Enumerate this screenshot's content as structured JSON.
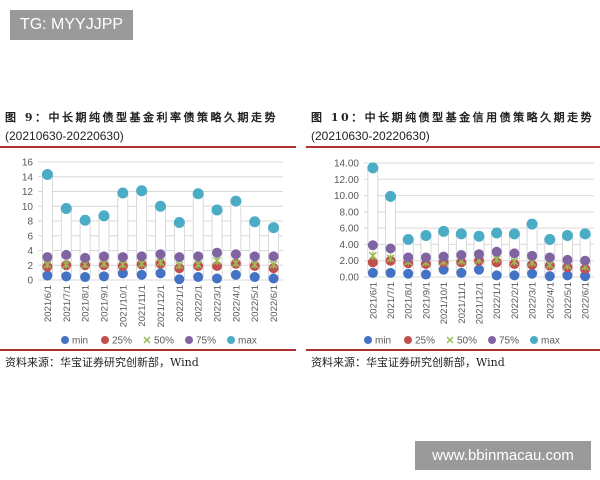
{
  "watermarks": {
    "top": "TG: MYYJJPP",
    "bottom": "www.bbinmacau.com"
  },
  "colors": {
    "min": "#4472c4",
    "p25": "#c0504d",
    "p50": "#9bbb59",
    "p75": "#8064a2",
    "max": "#4bacc6",
    "rule": "#b03030"
  },
  "chart_data": [
    {
      "type": "scatter",
      "title": "图 9：中长期纯债型基金利率债策略久期走势",
      "subtitle": "(20210630-20220630)",
      "source": "资料来源：华宝证券研究创新部，Wind",
      "ylim": [
        0,
        16
      ],
      "yticks": [
        "0",
        "2",
        "4",
        "6",
        "8",
        "10",
        "12",
        "14",
        "16"
      ],
      "categories": [
        "2021/6/1",
        "2021/7/1",
        "2021/8/1",
        "2021/9/1",
        "2021/10/1",
        "2021/11/1",
        "2021/12/1",
        "2022/1/1",
        "2022/2/1",
        "2022/3/1",
        "2022/4/1",
        "2022/5/1",
        "2022/6/1"
      ],
      "legend": [
        "min",
        "25%",
        "50%",
        "75%",
        "max"
      ],
      "legend_position": "bottom",
      "grid": true,
      "series": [
        {
          "name": "min",
          "values": [
            0.6,
            0.5,
            0.4,
            0.5,
            0.9,
            0.7,
            0.9,
            0.1,
            0.4,
            0.2,
            0.7,
            0.4,
            0.2
          ]
        },
        {
          "name": "25%",
          "values": [
            1.8,
            2.0,
            2.0,
            2.0,
            1.9,
            2.1,
            2.2,
            1.6,
            1.9,
            1.9,
            2.2,
            1.9,
            1.6
          ]
        },
        {
          "name": "50%",
          "values": [
            2.1,
            2.1,
            2.1,
            2.2,
            2.1,
            2.2,
            2.4,
            2.0,
            2.1,
            2.6,
            2.3,
            2.1,
            2.1
          ]
        },
        {
          "name": "75%",
          "values": [
            3.1,
            3.4,
            3.0,
            3.2,
            3.1,
            3.2,
            3.5,
            3.1,
            3.2,
            3.7,
            3.5,
            3.2,
            3.2
          ]
        },
        {
          "name": "max",
          "values": [
            14.3,
            9.7,
            8.1,
            8.7,
            11.8,
            12.1,
            10.0,
            7.8,
            11.7,
            9.5,
            10.7,
            7.9,
            7.1
          ]
        }
      ]
    },
    {
      "type": "scatter",
      "title": "图 10：中长期纯债型基金信用债策略久期走势",
      "subtitle": "(20210630-20220630)",
      "source": "资料来源：华宝证券研究创新部，Wind",
      "ylim": [
        0,
        14
      ],
      "yticks": [
        "0.00",
        "2.00",
        "4.00",
        "6.00",
        "8.00",
        "10.00",
        "12.00",
        "14.00"
      ],
      "categories": [
        "2021/6/1",
        "2021/7/1",
        "2021/8/1",
        "2021/9/1",
        "2021/10/1",
        "2021/11/1",
        "2021/12/1",
        "2022/1/1",
        "2022/2/1",
        "2022/3/1",
        "2022/4/1",
        "2022/5/1",
        "2022/6/1"
      ],
      "legend": [
        "min",
        "25%",
        "50%",
        "75%",
        "max"
      ],
      "legend_position": "bottom",
      "grid": true,
      "series": [
        {
          "name": "min",
          "values": [
            0.5,
            0.5,
            0.4,
            0.3,
            0.9,
            0.5,
            0.9,
            0.2,
            0.2,
            0.4,
            0.1,
            0.2,
            0.1
          ]
        },
        {
          "name": "25%",
          "values": [
            1.8,
            2.0,
            1.7,
            1.6,
            1.8,
            1.8,
            2.0,
            1.8,
            1.6,
            1.5,
            1.4,
            1.2,
            1.0
          ]
        },
        {
          "name": "50%",
          "values": [
            2.6,
            2.3,
            1.9,
            1.8,
            1.9,
            2.0,
            2.1,
            2.2,
            1.9,
            1.8,
            1.5,
            1.4,
            1.3
          ]
        },
        {
          "name": "75%",
          "values": [
            3.9,
            3.5,
            2.4,
            2.4,
            2.5,
            2.7,
            2.8,
            3.1,
            2.9,
            2.6,
            2.4,
            2.1,
            2.0
          ]
        },
        {
          "name": "max",
          "values": [
            13.4,
            9.9,
            4.6,
            5.1,
            5.6,
            5.3,
            5.0,
            5.4,
            5.3,
            6.5,
            4.6,
            5.1,
            5.3
          ]
        }
      ]
    }
  ]
}
